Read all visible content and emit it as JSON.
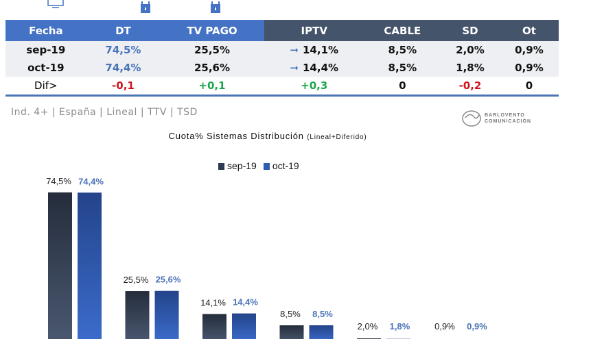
{
  "icons": [
    "monitor-icon",
    "lock-icon",
    "lock-icon"
  ],
  "table": {
    "headers": [
      "Fecha",
      "DT",
      "TV PAGO",
      "IPTV",
      "CABLE",
      "SD",
      "Ot"
    ],
    "rows": [
      {
        "label": "sep-19",
        "values": [
          "74,5%",
          "25,5%",
          "14,1%",
          "8,5%",
          "2,0%",
          "0,9%"
        ]
      },
      {
        "label": "oct-19",
        "values": [
          "74,4%",
          "25,6%",
          "14,4%",
          "8,5%",
          "1,8%",
          "0,9%"
        ]
      }
    ],
    "dif": {
      "label": "Dif>",
      "values": [
        "-0,1",
        "+0,1",
        "+0,3",
        "0",
        "-0,2",
        "0"
      ]
    }
  },
  "subtitle": "Ind. 4+ | España | Lineal | TTV | TSD",
  "logo": {
    "line1": "BARLOVENTO",
    "line2": "COMUNICACIÓN"
  },
  "colors": {
    "header_blue": "#4472c4",
    "header_dark": "#44546a",
    "sep": "#2e3a50",
    "oct": "#2f5db0",
    "negative": "#d0141e",
    "positive": "#1aa64a"
  },
  "chart_data": {
    "type": "bar",
    "title": "Cuota% Sistemas Distribución",
    "title_note": "(Lineal+Diferido)",
    "legend_position": "top",
    "grid": false,
    "series": [
      {
        "name": "sep-19",
        "values": [
          74.5,
          25.5,
          14.1,
          8.5,
          2.0,
          0.9
        ],
        "labels": [
          "74,5%",
          "25,5%",
          "14,1%",
          "8,5%",
          "2,0%",
          "0,9%"
        ]
      },
      {
        "name": "oct-19",
        "values": [
          74.4,
          25.6,
          14.4,
          8.5,
          1.8,
          0.9
        ],
        "labels": [
          "74,4%",
          "25,6%",
          "14,4%",
          "8,5%",
          "1,8%",
          "0,9%"
        ]
      }
    ]
  }
}
